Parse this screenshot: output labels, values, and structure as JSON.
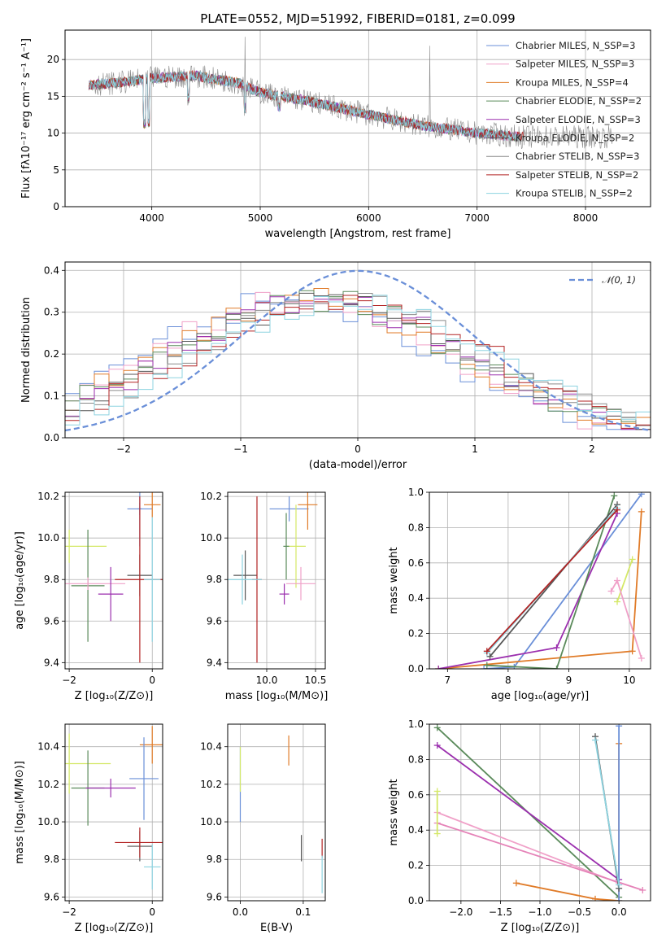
{
  "chart_data": [
    {
      "id": "spectrum",
      "type": "line",
      "title": "PLATE=0552, MJD=51992, FIBERID=0181, z=0.099",
      "xlabel": "wavelength [Angstrom, rest frame]",
      "ylabel": "Flux [fλ10⁻¹⁷ erg cm⁻² s⁻¹ A⁻¹]",
      "xlim": [
        3200,
        8600
      ],
      "ylim": [
        0,
        24
      ],
      "xticks": [
        4000,
        5000,
        6000,
        7000,
        8000
      ],
      "yticks": [
        0,
        5,
        10,
        15,
        20
      ],
      "legend_position": "upper-right",
      "legend": [
        "Chabrier MILES, N_SSP=3",
        "Salpeter MILES, N_SSP=3",
        "Kroupa MILES, N_SSP=4",
        "Chabrier ELODIE, N_SSP=2",
        "Salpeter ELODIE, N_SSP=3",
        "Kroupa ELODIE, N_SSP=2",
        "Chabrier STELIB, N_SSP=3",
        "Salpeter STELIB, N_SSP=2",
        "Kroupa STELIB, N_SSP=2"
      ],
      "continuum": {
        "x": [
          3400,
          3800,
          4000,
          4400,
          4800,
          5000,
          5400,
          6000,
          6500,
          7000,
          7400
        ],
        "y": [
          16.5,
          17.0,
          17.5,
          17.8,
          16.8,
          15.5,
          14.5,
          12.5,
          11.0,
          10.0,
          9.5
        ]
      }
    },
    {
      "id": "residuals",
      "type": "step",
      "xlabel": "(data-model)/error",
      "ylabel": "Normed distribution",
      "xlim": [
        -2.5,
        2.5
      ],
      "ylim": [
        0,
        0.42
      ],
      "xticks": [
        -2,
        -1,
        0,
        1,
        2
      ],
      "yticks": [
        0.0,
        0.1,
        0.2,
        0.3,
        0.4
      ],
      "legend": [
        "𝒩(0, 1)"
      ],
      "legend_position": "upper-right",
      "gaussian": {
        "mean": 0,
        "sigma": 1
      }
    },
    {
      "id": "age-vs-Z",
      "type": "errorbar",
      "xlabel": "Z [log₁₀(Z/Z⊙)]",
      "ylabel": "age  [log₁₀(age/yr)]",
      "xlim": [
        -2.1,
        0.25
      ],
      "ylim": [
        9.37,
        10.22
      ],
      "xticks": [
        -2,
        0
      ],
      "yticks": [
        9.4,
        9.6,
        9.8,
        10.0,
        10.2
      ],
      "points": [
        {
          "x": -0.3,
          "y": 10.14,
          "xerr": 0.3,
          "yerr": 0.03,
          "color": "#6a8fd8"
        },
        {
          "x": -0.3,
          "y": 10.14,
          "xerr": 0.05,
          "yerr": 0.18,
          "color": "#6a8fd8"
        },
        {
          "x": 0.0,
          "y": 10.16,
          "xerr": 0.2,
          "yerr": 0.06,
          "color": "#e07b28"
        },
        {
          "x": -2.0,
          "y": 9.96,
          "xerr": 0.9,
          "yerr": 0.08,
          "color": "#d4e866"
        },
        {
          "x": -1.55,
          "y": 9.77,
          "xerr": 0.4,
          "yerr": 0.27,
          "color": "#5a8a5a"
        },
        {
          "x": -1.55,
          "y": 9.78,
          "xerr": 0.9,
          "yerr": 0.03,
          "color": "#f0a0c8"
        },
        {
          "x": -1.0,
          "y": 9.73,
          "xerr": 0.3,
          "yerr": 0.13,
          "color": "#9b2fae"
        },
        {
          "x": -0.3,
          "y": 9.82,
          "xerr": 0.3,
          "yerr": 0.1,
          "color": "#555555"
        },
        {
          "x": -0.3,
          "y": 9.8,
          "xerr": 0.6,
          "yerr": 0.4,
          "color": "#b22222"
        },
        {
          "x": 0.0,
          "y": 9.8,
          "xerr": 0.2,
          "yerr": 0.3,
          "color": "#8dd3e0"
        }
      ]
    },
    {
      "id": "age-vs-mass",
      "type": "errorbar",
      "xlabel": "mass [log₁₀(M/M⊙)]",
      "ylabel": "",
      "xlim": [
        9.6,
        10.6
      ],
      "ylim": [
        9.37,
        10.22
      ],
      "xticks": [
        10.0,
        10.5
      ],
      "yticks": [
        9.4,
        9.6,
        9.8,
        10.0,
        10.2
      ],
      "points": [
        {
          "x": 10.23,
          "y": 10.14,
          "xerr": 0.2,
          "yerr": 0.06,
          "color": "#6a8fd8"
        },
        {
          "x": 10.42,
          "y": 10.16,
          "xerr": 0.1,
          "yerr": 0.12,
          "color": "#e07b28"
        },
        {
          "x": 10.3,
          "y": 9.96,
          "xerr": 0.1,
          "yerr": 0.2,
          "color": "#d4e866"
        },
        {
          "x": 10.2,
          "y": 9.96,
          "xerr": 0.03,
          "yerr": 0.16,
          "color": "#5a8a5a"
        },
        {
          "x": 10.35,
          "y": 9.78,
          "xerr": 0.15,
          "yerr": 0.08,
          "color": "#f0a0c8"
        },
        {
          "x": 10.18,
          "y": 9.73,
          "xerr": 0.05,
          "yerr": 0.05,
          "color": "#9b2fae"
        },
        {
          "x": 9.78,
          "y": 9.82,
          "xerr": 0.12,
          "yerr": 0.12,
          "color": "#555555"
        },
        {
          "x": 9.9,
          "y": 9.8,
          "xerr": 0.05,
          "yerr": 0.4,
          "color": "#b22222"
        },
        {
          "x": 9.75,
          "y": 9.8,
          "xerr": 0.2,
          "yerr": 0.12,
          "color": "#8dd3e0"
        }
      ]
    },
    {
      "id": "massweight-vs-age",
      "type": "line",
      "xlabel": "age  [log₁₀(age/yr)]",
      "ylabel": "mass weight",
      "xlim": [
        6.7,
        10.35
      ],
      "ylim": [
        0,
        1
      ],
      "xticks": [
        7,
        8,
        9,
        10
      ],
      "yticks": [
        0.0,
        0.2,
        0.4,
        0.6,
        0.8,
        1.0
      ],
      "series": [
        {
          "color": "#6a8fd8",
          "x": [
            7.6,
            8.1,
            10.2
          ],
          "y": [
            0.0,
            0.01,
            0.99
          ]
        },
        {
          "color": "#e07b28",
          "x": [
            6.85,
            10.05,
            10.2
          ],
          "y": [
            0.0,
            0.1,
            0.89
          ]
        },
        {
          "color": "#9b2fae",
          "x": [
            6.85,
            8.8,
            9.8
          ],
          "y": [
            0.0,
            0.12,
            0.88
          ]
        },
        {
          "color": "#5a8a5a",
          "x": [
            7.65,
            8.8,
            9.75
          ],
          "y": [
            0.02,
            0.0,
            0.98
          ]
        },
        {
          "color": "#555555",
          "x": [
            7.7,
            9.8
          ],
          "y": [
            0.07,
            0.93
          ]
        },
        {
          "color": "#8dd3e0",
          "x": [
            7.65,
            9.8
          ],
          "y": [
            0.09,
            0.91
          ]
        },
        {
          "color": "#b22222",
          "x": [
            7.65,
            9.8
          ],
          "y": [
            0.1,
            0.9
          ]
        },
        {
          "color": "#d4e866",
          "x": [
            9.8,
            10.05
          ],
          "y": [
            0.38,
            0.62
          ]
        },
        {
          "color": "#f0a0c8",
          "x": [
            9.7,
            9.8,
            10.2
          ],
          "y": [
            0.44,
            0.5,
            0.06
          ]
        }
      ]
    },
    {
      "id": "mass-vs-Z",
      "type": "errorbar",
      "xlabel": "Z [log₁₀(Z/Z⊙)]",
      "ylabel": "mass [log₁₀(M/M⊙)]",
      "xlim": [
        -2.1,
        0.25
      ],
      "ylim": [
        9.58,
        10.52
      ],
      "xticks": [
        -2,
        0
      ],
      "yticks": [
        9.6,
        9.8,
        10.0,
        10.2,
        10.4
      ],
      "points": [
        {
          "x": 0.0,
          "y": 10.41,
          "xerr": 0.3,
          "yerr": 0.1,
          "color": "#e07b28"
        },
        {
          "x": -0.2,
          "y": 10.23,
          "xerr": 0.35,
          "yerr": 0.22,
          "color": "#6a8fd8"
        },
        {
          "x": -2.0,
          "y": 10.31,
          "xerr": 1.0,
          "yerr": 0.16,
          "color": "#d4e866"
        },
        {
          "x": -1.55,
          "y": 10.18,
          "xerr": 0.4,
          "yerr": 0.2,
          "color": "#5a8a5a"
        },
        {
          "x": -1.0,
          "y": 10.18,
          "xerr": 0.6,
          "yerr": 0.05,
          "color": "#9b2fae"
        },
        {
          "x": -0.3,
          "y": 9.87,
          "xerr": 0.3,
          "yerr": 0.08,
          "color": "#555555"
        },
        {
          "x": -0.3,
          "y": 9.89,
          "xerr": 0.6,
          "yerr": 0.08,
          "color": "#b22222"
        },
        {
          "x": 0.0,
          "y": 9.76,
          "xerr": 0.2,
          "yerr": 0.12,
          "color": "#8dd3e0"
        }
      ]
    },
    {
      "id": "mass-vs-ebv",
      "type": "errorbar",
      "xlabel": "E(B-V)",
      "ylabel": "",
      "xlim": [
        -0.02,
        0.135
      ],
      "ylim": [
        9.58,
        10.52
      ],
      "xticks": [
        0.0,
        0.1
      ],
      "yticks": [
        9.6,
        9.8,
        10.0,
        10.2,
        10.4
      ],
      "points": [
        {
          "x": 0.0,
          "y": 10.2,
          "xerr": 0.0,
          "yerr": 0.2,
          "color": "#6a8fd8"
        },
        {
          "x": 0.0,
          "y": 10.28,
          "xerr": 0.0,
          "yerr": 0.12,
          "color": "#d4e866"
        },
        {
          "x": 0.077,
          "y": 10.38,
          "xerr": 0.0,
          "yerr": 0.08,
          "color": "#e07b28"
        },
        {
          "x": 0.097,
          "y": 9.86,
          "xerr": 0.0,
          "yerr": 0.07,
          "color": "#555555"
        },
        {
          "x": 0.13,
          "y": 9.86,
          "xerr": 0.0,
          "yerr": 0.05,
          "color": "#b22222"
        },
        {
          "x": 0.13,
          "y": 9.72,
          "xerr": 0.0,
          "yerr": 0.1,
          "color": "#8dd3e0"
        }
      ]
    },
    {
      "id": "massweight-vs-Z",
      "type": "line",
      "xlabel": "Z [log₁₀(Z/Z⊙)]",
      "ylabel": "mass weight",
      "xlim": [
        -2.4,
        0.4
      ],
      "ylim": [
        0,
        1
      ],
      "xticks": [
        -2.0,
        -1.5,
        -1.0,
        -0.5,
        0.0
      ],
      "yticks": [
        0.0,
        0.2,
        0.4,
        0.6,
        0.8,
        1.0
      ],
      "series": [
        {
          "color": "#5a8a5a",
          "x": [
            -2.3,
            0.0
          ],
          "y": [
            0.98,
            0.02
          ]
        },
        {
          "color": "#9b2fae",
          "x": [
            -2.3,
            0.0
          ],
          "y": [
            0.88,
            0.12
          ]
        },
        {
          "color": "#f0a0c8",
          "x": [
            -2.3,
            0.0
          ],
          "y": [
            0.5,
            0.1
          ]
        },
        {
          "color": "#e583b8",
          "x": [
            -2.3,
            0.3
          ],
          "y": [
            0.44,
            0.06
          ]
        },
        {
          "color": "#d4e866",
          "x": [
            -2.3,
            -2.3
          ],
          "y": [
            0.38,
            0.62
          ]
        },
        {
          "color": "#e07b28",
          "x": [
            -1.3,
            -0.3,
            0.0,
            0.0
          ],
          "y": [
            0.1,
            0.01,
            0.0,
            0.89
          ]
        },
        {
          "color": "#6a8fd8",
          "x": [
            0.0,
            0.0
          ],
          "y": [
            0.0,
            0.99
          ]
        },
        {
          "color": "#555555",
          "x": [
            -0.3,
            0.0
          ],
          "y": [
            0.93,
            0.07
          ]
        },
        {
          "color": "#8dd3e0",
          "x": [
            -0.3,
            0.0
          ],
          "y": [
            0.91,
            0.09
          ]
        }
      ]
    }
  ],
  "colors": {
    "series": [
      "#6a8fd8",
      "#f0a0c8",
      "#e07b28",
      "#5a8a5a",
      "#9b2fae",
      "#555555",
      "#8a8a8a",
      "#b22222",
      "#8dd3e0"
    ],
    "gaussian": "#6a8fd8"
  }
}
